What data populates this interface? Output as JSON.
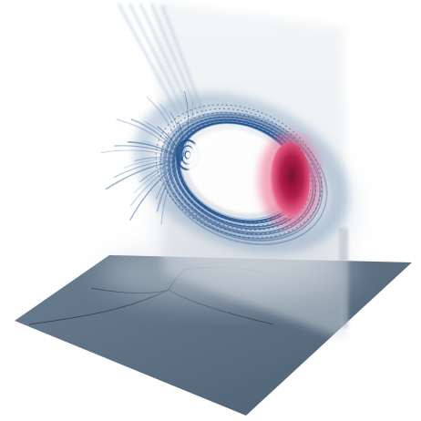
{
  "scene": {
    "background": "#ffffff",
    "floor_color": "#5a6e82",
    "floor_edge_color": "#33424f",
    "curve_color": "#1f4c88",
    "curve_highlight": "#8fb6dd",
    "haze_color": "#d7dde4",
    "core_color": "#c0234f",
    "core_glow": "#e8628a",
    "core_dark": "#7a0f2e",
    "icons": [
      "volume-render",
      "vortex-ring",
      "floor-plane"
    ]
  }
}
